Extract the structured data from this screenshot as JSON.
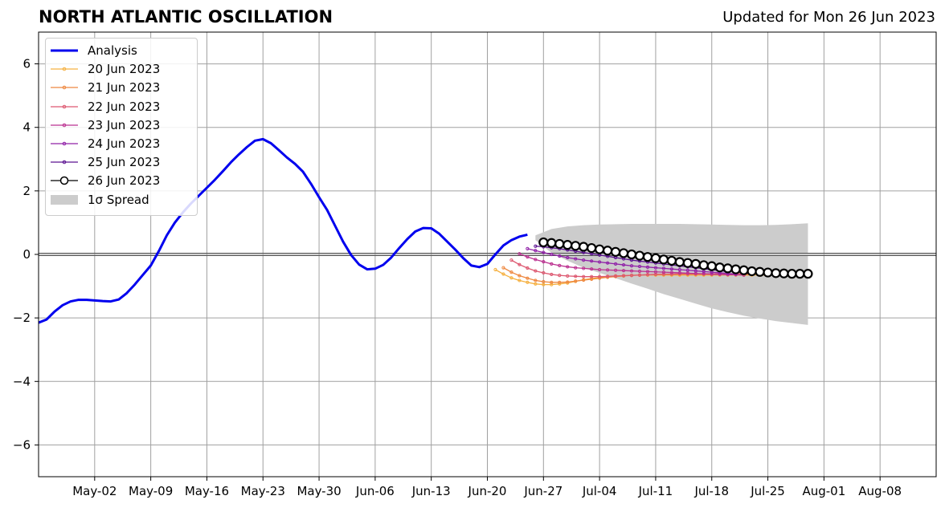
{
  "header": {
    "title": "NORTH ATLANTIC OSCILLATION",
    "updated": "Updated for Mon 26 Jun 2023"
  },
  "chart_data": {
    "type": "line",
    "title": "NORTH ATLANTIC OSCILLATION",
    "xlabel": "",
    "ylabel": "",
    "x_axis": "date",
    "xlim": [
      "2023-04-25",
      "2023-08-15"
    ],
    "ylim": [
      -7,
      7
    ],
    "grid": true,
    "legend_position": "top-left",
    "x_ticks": [
      "May-02",
      "May-09",
      "May-16",
      "May-23",
      "May-30",
      "Jun-06",
      "Jun-13",
      "Jun-20",
      "Jun-27",
      "Jul-04",
      "Jul-11",
      "Jul-18",
      "Jul-25",
      "Aug-01",
      "Aug-08"
    ],
    "x_tick_dates": [
      "2023-05-02",
      "2023-05-09",
      "2023-05-16",
      "2023-05-23",
      "2023-05-30",
      "2023-06-06",
      "2023-06-13",
      "2023-06-20",
      "2023-06-27",
      "2023-07-04",
      "2023-07-11",
      "2023-07-18",
      "2023-07-25",
      "2023-08-01",
      "2023-08-08"
    ],
    "y_ticks": [
      6,
      4,
      2,
      0,
      -2,
      -4,
      -6
    ],
    "y_tick_labels": [
      "6",
      "4",
      "2",
      "0",
      "−2",
      "−4",
      "−6"
    ],
    "analysis": {
      "name": "Analysis",
      "color": "#0000ee",
      "x": [
        "2023-04-25",
        "2023-04-26",
        "2023-04-27",
        "2023-04-28",
        "2023-04-29",
        "2023-04-30",
        "2023-05-01",
        "2023-05-02",
        "2023-05-03",
        "2023-05-04",
        "2023-05-05",
        "2023-05-06",
        "2023-05-07",
        "2023-05-08",
        "2023-05-09",
        "2023-05-10",
        "2023-05-11",
        "2023-05-12",
        "2023-05-13",
        "2023-05-14",
        "2023-05-15",
        "2023-05-16",
        "2023-05-17",
        "2023-05-18",
        "2023-05-19",
        "2023-05-20",
        "2023-05-21",
        "2023-05-22",
        "2023-05-23",
        "2023-05-24",
        "2023-05-25",
        "2023-05-26",
        "2023-05-27",
        "2023-05-28",
        "2023-05-29",
        "2023-05-30",
        "2023-05-31",
        "2023-06-01",
        "2023-06-02",
        "2023-06-03",
        "2023-06-04",
        "2023-06-05",
        "2023-06-06",
        "2023-06-07",
        "2023-06-08",
        "2023-06-09",
        "2023-06-10",
        "2023-06-11",
        "2023-06-12",
        "2023-06-13",
        "2023-06-14",
        "2023-06-15",
        "2023-06-16",
        "2023-06-17",
        "2023-06-18",
        "2023-06-19",
        "2023-06-20",
        "2023-06-21",
        "2023-06-22",
        "2023-06-23",
        "2023-06-24",
        "2023-06-25",
        "2023-06-26"
      ],
      "y": [
        -2.15,
        -2.05,
        -1.8,
        -1.6,
        -1.48,
        -1.43,
        -1.43,
        -1.45,
        -1.47,
        -1.48,
        -1.42,
        -1.22,
        -0.95,
        -0.65,
        -0.35,
        0.1,
        0.6,
        1.0,
        1.32,
        1.6,
        1.85,
        2.1,
        2.35,
        2.62,
        2.9,
        3.15,
        3.38,
        3.58,
        3.63,
        3.5,
        3.28,
        3.05,
        2.85,
        2.6,
        2.22,
        1.8,
        1.4,
        0.9,
        0.4,
        -0.02,
        -0.32,
        -0.47,
        -0.45,
        -0.33,
        -0.1,
        0.2,
        0.48,
        0.72,
        0.83,
        0.82,
        0.65,
        0.4,
        0.15,
        -0.12,
        -0.35,
        -0.4,
        -0.3,
        0.0,
        0.28,
        0.45,
        0.56,
        0.62,
        null
      ]
    },
    "spread": {
      "name": "1σ Spread",
      "color": "#cccccc",
      "x": [
        "2023-06-26",
        "2023-06-28",
        "2023-06-30",
        "2023-07-02",
        "2023-07-04",
        "2023-07-06",
        "2023-07-08",
        "2023-07-10",
        "2023-07-12",
        "2023-07-14",
        "2023-07-16",
        "2023-07-18",
        "2023-07-20",
        "2023-07-22",
        "2023-07-24",
        "2023-07-26",
        "2023-07-28",
        "2023-07-30"
      ],
      "upper": [
        0.6,
        0.8,
        0.88,
        0.92,
        0.94,
        0.95,
        0.96,
        0.96,
        0.96,
        0.96,
        0.95,
        0.94,
        0.93,
        0.92,
        0.92,
        0.93,
        0.95,
        0.98
      ],
      "lower": [
        0.45,
        0.05,
        -0.2,
        -0.42,
        -0.58,
        -0.75,
        -0.92,
        -1.08,
        -1.25,
        -1.4,
        -1.55,
        -1.7,
        -1.82,
        -1.93,
        -2.02,
        -2.1,
        -2.16,
        -2.22
      ]
    },
    "series": [
      {
        "name": "20 Jun 2023",
        "color": "#f5b040",
        "x": [
          "2023-06-21",
          "2023-06-22",
          "2023-06-23",
          "2023-06-24",
          "2023-06-25",
          "2023-06-26",
          "2023-06-27",
          "2023-06-28",
          "2023-06-29",
          "2023-06-30",
          "2023-07-01",
          "2023-07-02",
          "2023-07-03",
          "2023-07-04",
          "2023-07-05",
          "2023-07-06",
          "2023-07-07",
          "2023-07-08",
          "2023-07-09",
          "2023-07-10",
          "2023-07-11",
          "2023-07-12",
          "2023-07-13",
          "2023-07-14",
          "2023-07-15",
          "2023-07-16",
          "2023-07-17",
          "2023-07-18",
          "2023-07-19",
          "2023-07-20",
          "2023-07-21",
          "2023-07-22",
          "2023-07-23",
          "2023-07-24",
          "2023-07-25",
          "2023-07-26",
          "2023-07-27",
          "2023-07-28"
        ],
        "y": [
          -0.48,
          -0.62,
          -0.74,
          -0.82,
          -0.88,
          -0.93,
          -0.95,
          -0.95,
          -0.93,
          -0.9,
          -0.85,
          -0.8,
          -0.76,
          -0.73,
          -0.7,
          -0.68,
          -0.67,
          -0.66,
          -0.65,
          -0.65,
          -0.65,
          -0.65,
          -0.65,
          -0.65,
          -0.65,
          -0.65,
          -0.65,
          -0.65,
          -0.65,
          -0.65,
          -0.65,
          -0.65,
          -0.65,
          -0.65,
          -0.65,
          -0.65,
          -0.65,
          -0.65
        ]
      },
      {
        "name": "21 Jun 2023",
        "color": "#ee8840",
        "x": [
          "2023-06-22",
          "2023-06-23",
          "2023-06-24",
          "2023-06-25",
          "2023-06-26",
          "2023-06-27",
          "2023-06-28",
          "2023-06-29",
          "2023-06-30",
          "2023-07-01",
          "2023-07-02",
          "2023-07-03",
          "2023-07-04",
          "2023-07-05",
          "2023-07-06",
          "2023-07-07",
          "2023-07-08",
          "2023-07-09",
          "2023-07-10",
          "2023-07-11",
          "2023-07-12",
          "2023-07-13",
          "2023-07-14",
          "2023-07-15",
          "2023-07-16",
          "2023-07-17",
          "2023-07-18",
          "2023-07-19",
          "2023-07-20",
          "2023-07-21",
          "2023-07-22",
          "2023-07-23"
        ],
        "y": [
          -0.42,
          -0.56,
          -0.67,
          -0.75,
          -0.82,
          -0.86,
          -0.88,
          -0.88,
          -0.87,
          -0.84,
          -0.81,
          -0.78,
          -0.75,
          -0.72,
          -0.7,
          -0.68,
          -0.66,
          -0.65,
          -0.64,
          -0.63,
          -0.63,
          -0.63,
          -0.63,
          -0.63,
          -0.63,
          -0.63,
          -0.63,
          -0.63,
          -0.63,
          -0.63,
          -0.63,
          -0.63
        ]
      },
      {
        "name": "22 Jun 2023",
        "color": "#dd5870",
        "x": [
          "2023-06-23",
          "2023-06-24",
          "2023-06-25",
          "2023-06-26",
          "2023-06-27",
          "2023-06-28",
          "2023-06-29",
          "2023-06-30",
          "2023-07-01",
          "2023-07-02",
          "2023-07-03",
          "2023-07-04",
          "2023-07-05",
          "2023-07-06",
          "2023-07-07",
          "2023-07-08",
          "2023-07-09",
          "2023-07-10",
          "2023-07-11",
          "2023-07-12",
          "2023-07-13",
          "2023-07-14",
          "2023-07-15",
          "2023-07-16",
          "2023-07-17",
          "2023-07-18",
          "2023-07-19",
          "2023-07-20",
          "2023-07-21",
          "2023-07-22",
          "2023-07-23",
          "2023-07-24",
          "2023-07-25"
        ],
        "y": [
          -0.18,
          -0.32,
          -0.43,
          -0.52,
          -0.58,
          -0.63,
          -0.66,
          -0.68,
          -0.69,
          -0.7,
          -0.7,
          -0.7,
          -0.69,
          -0.68,
          -0.67,
          -0.66,
          -0.65,
          -0.64,
          -0.63,
          -0.62,
          -0.62,
          -0.61,
          -0.61,
          -0.61,
          -0.61,
          -0.61,
          -0.61,
          -0.61,
          -0.61,
          -0.61,
          -0.61,
          -0.61,
          -0.61
        ]
      },
      {
        "name": "23 Jun 2023",
        "color": "#bb3090",
        "x": [
          "2023-06-24",
          "2023-06-25",
          "2023-06-26",
          "2023-06-27",
          "2023-06-28",
          "2023-06-29",
          "2023-06-30",
          "2023-07-01",
          "2023-07-02",
          "2023-07-03",
          "2023-07-04",
          "2023-07-05",
          "2023-07-06",
          "2023-07-07",
          "2023-07-08",
          "2023-07-09",
          "2023-07-10",
          "2023-07-11",
          "2023-07-12",
          "2023-07-13",
          "2023-07-14",
          "2023-07-15",
          "2023-07-16",
          "2023-07-17",
          "2023-07-18",
          "2023-07-19",
          "2023-07-20",
          "2023-07-21",
          "2023-07-22"
        ],
        "y": [
          0.02,
          -0.08,
          -0.16,
          -0.23,
          -0.3,
          -0.35,
          -0.39,
          -0.42,
          -0.44,
          -0.46,
          -0.48,
          -0.49,
          -0.5,
          -0.51,
          -0.52,
          -0.53,
          -0.54,
          -0.55,
          -0.56,
          -0.57,
          -0.58,
          -0.59,
          -0.6,
          -0.61,
          -0.62,
          -0.63,
          -0.64,
          -0.64,
          -0.65
        ]
      },
      {
        "name": "24 Jun 2023",
        "color": "#9020a8",
        "x": [
          "2023-06-25",
          "2023-06-26",
          "2023-06-27",
          "2023-06-28",
          "2023-06-29",
          "2023-06-30",
          "2023-07-01",
          "2023-07-02",
          "2023-07-03",
          "2023-07-04",
          "2023-07-05",
          "2023-07-06",
          "2023-07-07",
          "2023-07-08",
          "2023-07-09",
          "2023-07-10",
          "2023-07-11",
          "2023-07-12",
          "2023-07-13",
          "2023-07-14",
          "2023-07-15",
          "2023-07-16",
          "2023-07-17",
          "2023-07-18",
          "2023-07-19",
          "2023-07-20",
          "2023-07-21"
        ],
        "y": [
          0.18,
          0.12,
          0.06,
          0.0,
          -0.05,
          -0.1,
          -0.14,
          -0.18,
          -0.21,
          -0.24,
          -0.27,
          -0.3,
          -0.33,
          -0.36,
          -0.38,
          -0.4,
          -0.42,
          -0.44,
          -0.46,
          -0.48,
          -0.5,
          -0.52,
          -0.54,
          -0.56,
          -0.58,
          -0.6,
          -0.62
        ]
      },
      {
        "name": "25 Jun 2023",
        "color": "#5a1090",
        "x": [
          "2023-06-26",
          "2023-06-27",
          "2023-06-28",
          "2023-06-29",
          "2023-06-30",
          "2023-07-01",
          "2023-07-02",
          "2023-07-03",
          "2023-07-04",
          "2023-07-05",
          "2023-07-06",
          "2023-07-07",
          "2023-07-08",
          "2023-07-09",
          "2023-07-10",
          "2023-07-11",
          "2023-07-12",
          "2023-07-13",
          "2023-07-14",
          "2023-07-15",
          "2023-07-16",
          "2023-07-17",
          "2023-07-18",
          "2023-07-19",
          "2023-07-20"
        ],
        "y": [
          0.26,
          0.24,
          0.21,
          0.18,
          0.14,
          0.1,
          0.06,
          0.02,
          -0.02,
          -0.06,
          -0.1,
          -0.14,
          -0.18,
          -0.21,
          -0.24,
          -0.27,
          -0.3,
          -0.33,
          -0.36,
          -0.39,
          -0.42,
          -0.45,
          -0.48,
          -0.51,
          -0.54
        ]
      },
      {
        "name": "26 Jun 2023",
        "color": "#000000",
        "marker": "open-circle",
        "x": [
          "2023-06-27",
          "2023-06-28",
          "2023-06-29",
          "2023-06-30",
          "2023-07-01",
          "2023-07-02",
          "2023-07-03",
          "2023-07-04",
          "2023-07-05",
          "2023-07-06",
          "2023-07-07",
          "2023-07-08",
          "2023-07-09",
          "2023-07-10",
          "2023-07-11",
          "2023-07-12",
          "2023-07-13",
          "2023-07-14",
          "2023-07-15",
          "2023-07-16",
          "2023-07-17",
          "2023-07-18",
          "2023-07-19",
          "2023-07-20",
          "2023-07-21",
          "2023-07-22",
          "2023-07-23",
          "2023-07-24",
          "2023-07-25",
          "2023-07-26",
          "2023-07-27",
          "2023-07-28",
          "2023-07-29",
          "2023-07-30"
        ],
        "y": [
          0.38,
          0.36,
          0.33,
          0.3,
          0.27,
          0.24,
          0.2,
          0.16,
          0.12,
          0.08,
          0.04,
          0.0,
          -0.04,
          -0.08,
          -0.12,
          -0.16,
          -0.2,
          -0.24,
          -0.27,
          -0.3,
          -0.34,
          -0.37,
          -0.41,
          -0.44,
          -0.47,
          -0.5,
          -0.53,
          -0.55,
          -0.57,
          -0.59,
          -0.6,
          -0.61,
          -0.61,
          -0.61
        ]
      }
    ],
    "legend": [
      {
        "label": "Analysis",
        "kind": "thick-line",
        "color": "#0000ee"
      },
      {
        "label": "20 Jun 2023",
        "kind": "dot-line",
        "color": "#f5b040"
      },
      {
        "label": "21 Jun 2023",
        "kind": "dot-line",
        "color": "#ee8840"
      },
      {
        "label": "22 Jun 2023",
        "kind": "dot-line",
        "color": "#dd5870"
      },
      {
        "label": "23 Jun 2023",
        "kind": "dot-line",
        "color": "#bb3090"
      },
      {
        "label": "24 Jun 2023",
        "kind": "dot-line",
        "color": "#9020a8"
      },
      {
        "label": "25 Jun 2023",
        "kind": "dot-line",
        "color": "#5a1090"
      },
      {
        "label": "26 Jun 2023",
        "kind": "circle-line",
        "color": "#000000"
      },
      {
        "label": "1σ Spread",
        "kind": "patch",
        "color": "#cccccc"
      }
    ]
  }
}
